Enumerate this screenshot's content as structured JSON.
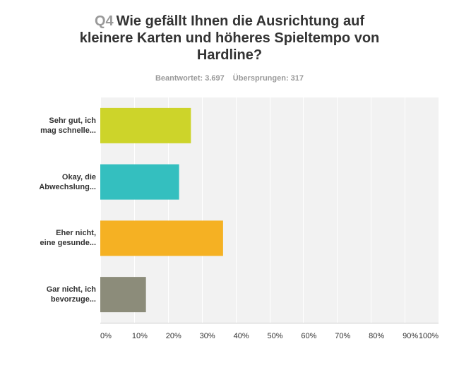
{
  "question": {
    "number": "Q4",
    "text": "Wie gefällt Ihnen die Ausrichtung auf kleinere Karten und höheres Spieltempo von Hardline?"
  },
  "stats": {
    "answered": "Beantwortet: 3.697",
    "skipped": "Übersprungen: 317"
  },
  "chart_data": {
    "type": "bar",
    "orientation": "horizontal",
    "categories": [
      [
        "Sehr gut, ich",
        "mag schnelle..."
      ],
      [
        "Okay, die",
        "Abwechslung..."
      ],
      [
        "Eher nicht,",
        "eine gesunde..."
      ],
      [
        "Gar nicht, ich",
        "bevorzuge..."
      ]
    ],
    "values": [
      26.8,
      23.3,
      36.3,
      13.5
    ],
    "colors": [
      "#cdd42a",
      "#34bfbf",
      "#f5b123",
      "#8c8c7a"
    ],
    "xlim": [
      0,
      100
    ],
    "xticks": [
      0,
      10,
      20,
      30,
      40,
      50,
      60,
      70,
      80,
      90,
      100
    ],
    "xtick_labels": [
      "0%",
      "10%",
      "20%",
      "30%",
      "40%",
      "50%",
      "60%",
      "70%",
      "80%",
      "90%",
      "100%"
    ],
    "grid": true
  }
}
